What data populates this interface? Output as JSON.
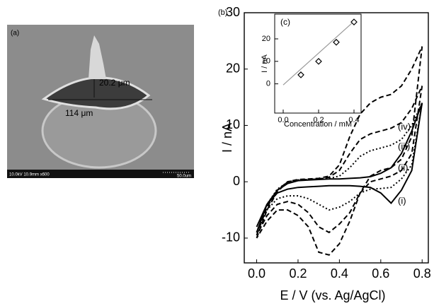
{
  "image_panel": {
    "label": "(a)",
    "height_label": "20.2 μm",
    "width_label": "114 μm",
    "info": "10.0kV 10.9mm x600",
    "scale": "50.0um"
  },
  "chart_data": [
    {
      "type": "line",
      "panel_label": "(b)",
      "x_label": "E / V (vs. Ag/AgCl)",
      "y_label": "I / nA",
      "x": [
        0,
        0.05,
        0.1,
        0.15,
        0.2,
        0.25,
        0.3,
        0.35,
        0.4,
        0.45,
        0.5,
        0.55,
        0.6,
        0.65,
        0.7,
        0.75,
        0.8,
        0.75,
        0.7,
        0.65,
        0.6,
        0.55,
        0.5,
        0.45,
        0.4,
        0.35,
        0.3,
        0.25,
        0.2,
        0.15,
        0.1,
        0.05,
        0
      ],
      "series": [
        {
          "name": "(i)",
          "color": "#000000",
          "line_style": "solid",
          "values": [
            -9,
            -4,
            -1.5,
            -0.3,
            0.2,
            0.3,
            0.4,
            0.5,
            0.5,
            0.6,
            0.7,
            0.9,
            1.5,
            2.5,
            5,
            9,
            14,
            2,
            -1.5,
            -3.8,
            -2,
            -1,
            -0.8,
            -0.7,
            -0.7,
            -0.7,
            -0.8,
            -0.9,
            -1,
            -1.3,
            -2,
            -4,
            -8
          ]
        },
        {
          "name": "(ii)",
          "color": "#000000",
          "line_style": "dotted",
          "values": [
            -9,
            -4,
            -1.3,
            -0.1,
            0.3,
            0.4,
            0.5,
            0.6,
            1,
            2.5,
            4.5,
            5.5,
            6,
            6.5,
            7.5,
            10,
            14,
            3,
            0.5,
            -1,
            -1.2,
            -1.3,
            -2,
            -3.5,
            -4.5,
            -5,
            -4,
            -3,
            -2.5,
            -2.5,
            -3,
            -5,
            -9
          ]
        },
        {
          "name": "(iii)",
          "color": "#000000",
          "line_style": "dashed",
          "values": [
            -9.5,
            -4.5,
            -1.5,
            0,
            0.3,
            0.4,
            0.5,
            0.8,
            2,
            5,
            7.5,
            8.5,
            9,
            9.5,
            10.5,
            13,
            17,
            5,
            2,
            1,
            0.5,
            0,
            -2,
            -5.5,
            -7.5,
            -9,
            -8,
            -5.5,
            -4,
            -3.5,
            -4,
            -6,
            -9.5
          ]
        },
        {
          "name": "(iv)",
          "color": "#000000",
          "line_style": "dashed",
          "values": [
            -10,
            -5,
            -1.8,
            0,
            0.4,
            0.5,
            0.6,
            1,
            3,
            8,
            12,
            14,
            15,
            15.5,
            17,
            20,
            24,
            8,
            4,
            2.5,
            2,
            1,
            -2,
            -7,
            -11,
            -13,
            -12.5,
            -8,
            -6,
            -5,
            -5,
            -7,
            -10
          ]
        }
      ],
      "xlim": [
        -0.06,
        0.83
      ],
      "xticks": [
        {
          "value": 0,
          "label": "0.0"
        },
        {
          "value": 0.2,
          "label": "0.2"
        },
        {
          "value": 0.4,
          "label": "0.4"
        },
        {
          "value": 0.6,
          "label": "0.6"
        },
        {
          "value": 0.8,
          "label": "0.8"
        }
      ],
      "ylim": [
        -14.4,
        30
      ],
      "yticks": [
        -10,
        0,
        10,
        20,
        30
      ]
    },
    {
      "type": "scatter",
      "panel_label": "(c)",
      "x_label": "Concentration / mM",
      "y_label": "I / nA",
      "series": [
        {
          "color": "#000000",
          "marker": "diamond",
          "x": [
            0.1,
            0.2,
            0.3,
            0.4
          ],
          "values": [
            4,
            10,
            18.5,
            27.5
          ]
        }
      ],
      "fit": {
        "color": "#999999",
        "x": [
          0,
          0.4
        ],
        "values": [
          -0.5,
          27.8
        ]
      },
      "xlim": [
        -0.048,
        0.44
      ],
      "xticks": [
        {
          "value": 0,
          "label": "0.0"
        },
        {
          "value": 0.2,
          "label": "0.2"
        },
        {
          "value": 0.4,
          "label": "0.4"
        }
      ],
      "ylim": [
        -13,
        31
      ],
      "yticks": [
        0,
        10,
        20
      ]
    }
  ]
}
